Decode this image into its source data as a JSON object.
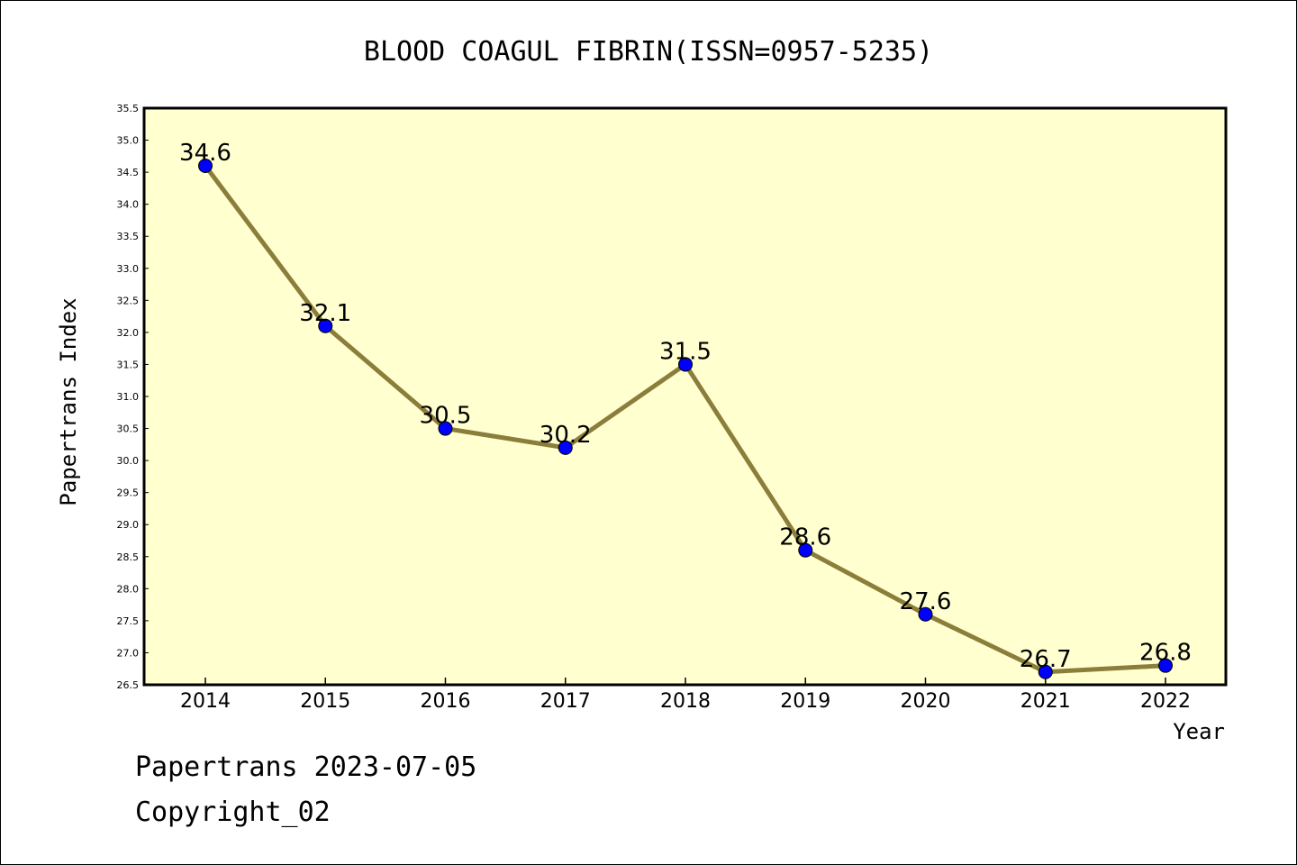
{
  "chart_data": {
    "type": "line",
    "title": "BLOOD COAGUL FIBRIN(ISSN=0957-5235)",
    "xlabel": "Year",
    "ylabel": "Papertrans Index",
    "ylim": [
      26.5,
      35.5
    ],
    "yticks": [
      "26.5",
      "27.0",
      "27.5",
      "28.0",
      "28.5",
      "29.0",
      "29.5",
      "30.0",
      "30.5",
      "31.0",
      "31.5",
      "32.0",
      "32.5",
      "33.0",
      "33.5",
      "34.0",
      "34.5",
      "35.0",
      "35.5"
    ],
    "categories": [
      "2014",
      "2015",
      "2016",
      "2017",
      "2018",
      "2019",
      "2020",
      "2021",
      "2022"
    ],
    "series": [
      {
        "values": [
          34.6,
          32.1,
          30.5,
          30.2,
          31.5,
          28.6,
          27.6,
          26.7,
          26.8
        ]
      }
    ],
    "data_labels": [
      "34.6",
      "32.1",
      "30.5",
      "30.2",
      "31.5",
      "28.6",
      "27.6",
      "26.7",
      "26.8"
    ],
    "colors": {
      "plot_bg": "#ffffd0",
      "line": "#8b7d3a",
      "marker": "#0000ff"
    },
    "grid": false
  },
  "footer": {
    "line1": "Papertrans 2023-07-05",
    "line2": "Copyright_02"
  }
}
